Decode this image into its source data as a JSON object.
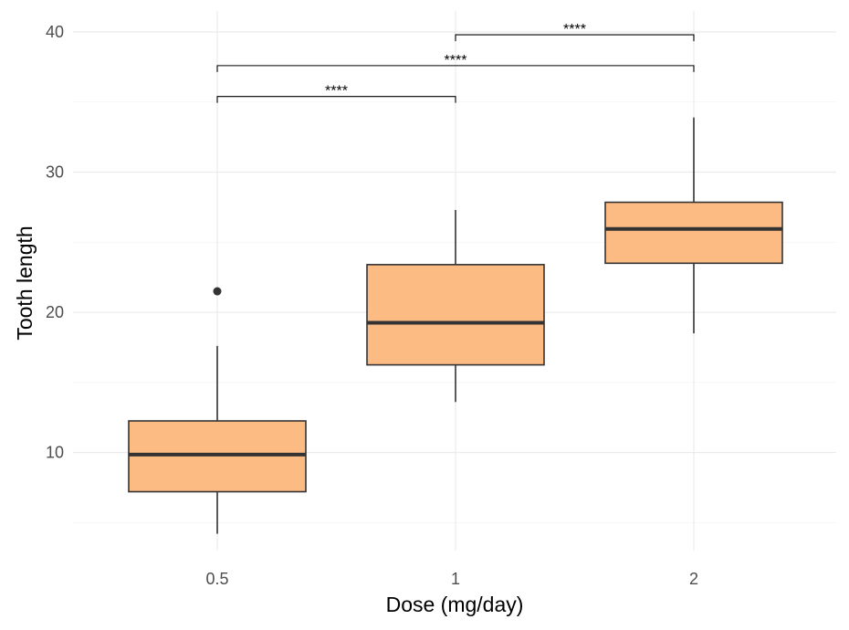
{
  "chart_data": {
    "type": "boxplot",
    "xlabel": "Dose (mg/day)",
    "ylabel": "Tooth length",
    "categories": [
      "0.5",
      "1",
      "2"
    ],
    "ylim": [
      3.0,
      41.5
    ],
    "yticks": [
      10,
      20,
      30,
      40
    ],
    "y_minor_ticks": [
      5,
      15,
      25,
      35
    ],
    "grid": true,
    "fill_color": "#FDBB84",
    "line_color": "#333333",
    "boxes": [
      {
        "category": "0.5",
        "min": 4.2,
        "q1": 7.2,
        "median": 9.85,
        "q3": 12.25,
        "max": 17.6,
        "outliers": [
          21.5
        ]
      },
      {
        "category": "1",
        "min": 13.6,
        "q1": 16.25,
        "median": 19.25,
        "q3": 23.4,
        "max": 27.3,
        "outliers": []
      },
      {
        "category": "2",
        "min": 18.5,
        "q1": 23.5,
        "median": 25.95,
        "q3": 27.85,
        "max": 33.9,
        "outliers": []
      }
    ],
    "comparisons": [
      {
        "group1": "0.5",
        "group2": "1",
        "y": 35.4,
        "label": "****"
      },
      {
        "group1": "0.5",
        "group2": "2",
        "y": 37.6,
        "label": "****"
      },
      {
        "group1": "1",
        "group2": "2",
        "y": 39.8,
        "label": "****"
      }
    ]
  }
}
